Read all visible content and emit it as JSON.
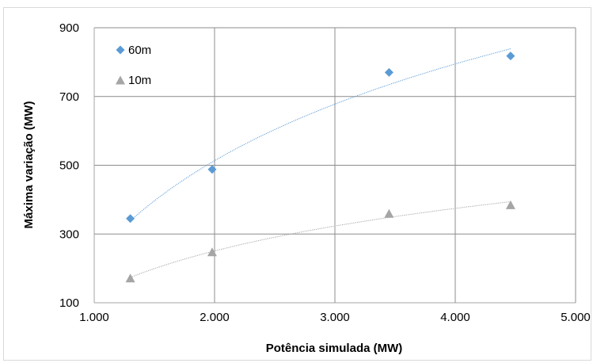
{
  "chart_data": {
    "type": "scatter",
    "title": "",
    "xlabel": "Potência simulada (MW)",
    "ylabel": "Máxima variação (MW)",
    "xlim": [
      1000,
      5000
    ],
    "ylim": [
      100,
      900
    ],
    "x_ticks": [
      1000,
      2000,
      3000,
      4000,
      5000
    ],
    "x_tick_labels": [
      "1.000",
      "2.000",
      "3.000",
      "4.000",
      "5.000"
    ],
    "y_ticks": [
      100,
      300,
      500,
      700,
      900
    ],
    "y_tick_labels": [
      "100",
      "300",
      "500",
      "700",
      "900"
    ],
    "grid": true,
    "legend_position": "top-left",
    "series": [
      {
        "name": "60m",
        "marker": "diamond",
        "color": "#5b9bd5",
        "x": [
          1300,
          1980,
          3450,
          4460
        ],
        "y": [
          345,
          488,
          770,
          818
        ],
        "trendline": "logarithmic"
      },
      {
        "name": "10m",
        "marker": "triangle",
        "color": "#a5a5a5",
        "x": [
          1300,
          1980,
          3450,
          4460
        ],
        "y": [
          172,
          248,
          360,
          385
        ],
        "trendline": "logarithmic"
      }
    ]
  }
}
